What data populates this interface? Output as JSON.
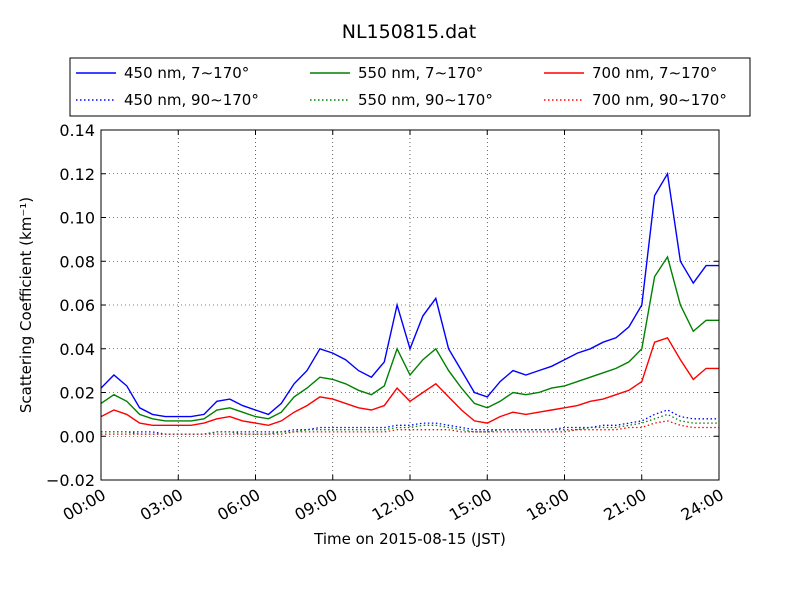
{
  "chart_data": {
    "type": "line",
    "title": "NL150815.dat",
    "xlabel": "Time on 2015-08-15 (JST)",
    "ylabel": "Scattering Coefficient (km⁻¹)",
    "xlim": [
      "00:00",
      "24:00"
    ],
    "ylim": [
      -0.02,
      0.14
    ],
    "grid": true,
    "legend_position": "top, above plot",
    "x_ticks": [
      "00:00",
      "03:00",
      "06:00",
      "09:00",
      "12:00",
      "15:00",
      "18:00",
      "21:00",
      "24:00"
    ],
    "y_ticks": [
      "−0.02",
      "0.00",
      "0.02",
      "0.04",
      "0.06",
      "0.08",
      "0.10",
      "0.12",
      "0.14"
    ],
    "x_hours": [
      0,
      0.5,
      1,
      1.5,
      2,
      2.5,
      3,
      3.5,
      4,
      4.5,
      5,
      5.5,
      6,
      6.5,
      7,
      7.5,
      8,
      8.5,
      9,
      9.5,
      10,
      10.5,
      11,
      11.5,
      12,
      12.5,
      13,
      13.5,
      14,
      14.5,
      15,
      15.5,
      16,
      16.5,
      17,
      17.5,
      18,
      18.5,
      19,
      19.5,
      20,
      20.5,
      21,
      21.5,
      22,
      22.5,
      23,
      23.5,
      24
    ],
    "series": [
      {
        "name": "450 nm, 7∼170°",
        "color": "#0000ff",
        "style": "solid",
        "values": [
          0.022,
          0.028,
          0.023,
          0.013,
          0.01,
          0.009,
          0.009,
          0.009,
          0.01,
          0.016,
          0.017,
          0.014,
          0.012,
          0.01,
          0.015,
          0.024,
          0.03,
          0.04,
          0.038,
          0.035,
          0.03,
          0.027,
          0.034,
          0.06,
          0.04,
          0.055,
          0.063,
          0.04,
          0.03,
          0.02,
          0.018,
          0.025,
          0.03,
          0.028,
          0.03,
          0.032,
          0.035,
          0.038,
          0.04,
          0.043,
          0.045,
          0.05,
          0.06,
          0.11,
          0.12,
          0.08,
          0.07,
          0.078,
          0.078
        ]
      },
      {
        "name": "450 nm, 90∼170°",
        "color": "#0000ff",
        "style": "dotted",
        "values": [
          0.002,
          0.002,
          0.002,
          0.002,
          0.002,
          0.001,
          0.001,
          0.001,
          0.001,
          0.002,
          0.002,
          0.002,
          0.002,
          0.002,
          0.002,
          0.003,
          0.003,
          0.004,
          0.004,
          0.004,
          0.004,
          0.004,
          0.004,
          0.005,
          0.005,
          0.006,
          0.006,
          0.005,
          0.004,
          0.003,
          0.003,
          0.003,
          0.003,
          0.003,
          0.003,
          0.003,
          0.004,
          0.004,
          0.004,
          0.005,
          0.005,
          0.006,
          0.007,
          0.01,
          0.012,
          0.009,
          0.008,
          0.008,
          0.008
        ]
      },
      {
        "name": "550 nm, 7∼170°",
        "color": "#008000",
        "style": "solid",
        "values": [
          0.015,
          0.019,
          0.016,
          0.01,
          0.008,
          0.007,
          0.007,
          0.007,
          0.008,
          0.012,
          0.013,
          0.011,
          0.009,
          0.008,
          0.011,
          0.018,
          0.022,
          0.027,
          0.026,
          0.024,
          0.021,
          0.019,
          0.023,
          0.04,
          0.028,
          0.035,
          0.04,
          0.03,
          0.022,
          0.015,
          0.013,
          0.016,
          0.02,
          0.019,
          0.02,
          0.022,
          0.023,
          0.025,
          0.027,
          0.029,
          0.031,
          0.034,
          0.04,
          0.073,
          0.082,
          0.06,
          0.048,
          0.053,
          0.053
        ]
      },
      {
        "name": "550 nm, 90∼170°",
        "color": "#008000",
        "style": "dotted",
        "values": [
          0.002,
          0.002,
          0.002,
          0.001,
          0.001,
          0.001,
          0.001,
          0.001,
          0.001,
          0.002,
          0.002,
          0.001,
          0.001,
          0.001,
          0.002,
          0.002,
          0.003,
          0.003,
          0.003,
          0.003,
          0.003,
          0.003,
          0.003,
          0.004,
          0.004,
          0.005,
          0.005,
          0.004,
          0.003,
          0.002,
          0.002,
          0.003,
          0.003,
          0.003,
          0.003,
          0.003,
          0.003,
          0.003,
          0.004,
          0.004,
          0.004,
          0.005,
          0.006,
          0.008,
          0.01,
          0.007,
          0.006,
          0.006,
          0.006
        ]
      },
      {
        "name": "700 nm, 7∼170°",
        "color": "#ff0000",
        "style": "solid",
        "values": [
          0.009,
          0.012,
          0.01,
          0.006,
          0.005,
          0.005,
          0.005,
          0.005,
          0.006,
          0.008,
          0.009,
          0.007,
          0.006,
          0.005,
          0.007,
          0.011,
          0.014,
          0.018,
          0.017,
          0.015,
          0.013,
          0.012,
          0.014,
          0.022,
          0.016,
          0.02,
          0.024,
          0.018,
          0.012,
          0.007,
          0.006,
          0.009,
          0.011,
          0.01,
          0.011,
          0.012,
          0.013,
          0.014,
          0.016,
          0.017,
          0.019,
          0.021,
          0.025,
          0.043,
          0.045,
          0.035,
          0.026,
          0.031,
          0.031
        ]
      },
      {
        "name": "700 nm, 90∼170°",
        "color": "#ff0000",
        "style": "dotted",
        "values": [
          0.001,
          0.001,
          0.001,
          0.001,
          0.001,
          0.001,
          0.001,
          0.001,
          0.001,
          0.001,
          0.001,
          0.001,
          0.001,
          0.001,
          0.001,
          0.002,
          0.002,
          0.002,
          0.002,
          0.002,
          0.002,
          0.002,
          0.002,
          0.003,
          0.003,
          0.003,
          0.003,
          0.003,
          0.002,
          0.002,
          0.002,
          0.002,
          0.002,
          0.002,
          0.002,
          0.002,
          0.002,
          0.003,
          0.003,
          0.003,
          0.003,
          0.004,
          0.004,
          0.006,
          0.007,
          0.005,
          0.004,
          0.004,
          0.004
        ]
      }
    ]
  }
}
